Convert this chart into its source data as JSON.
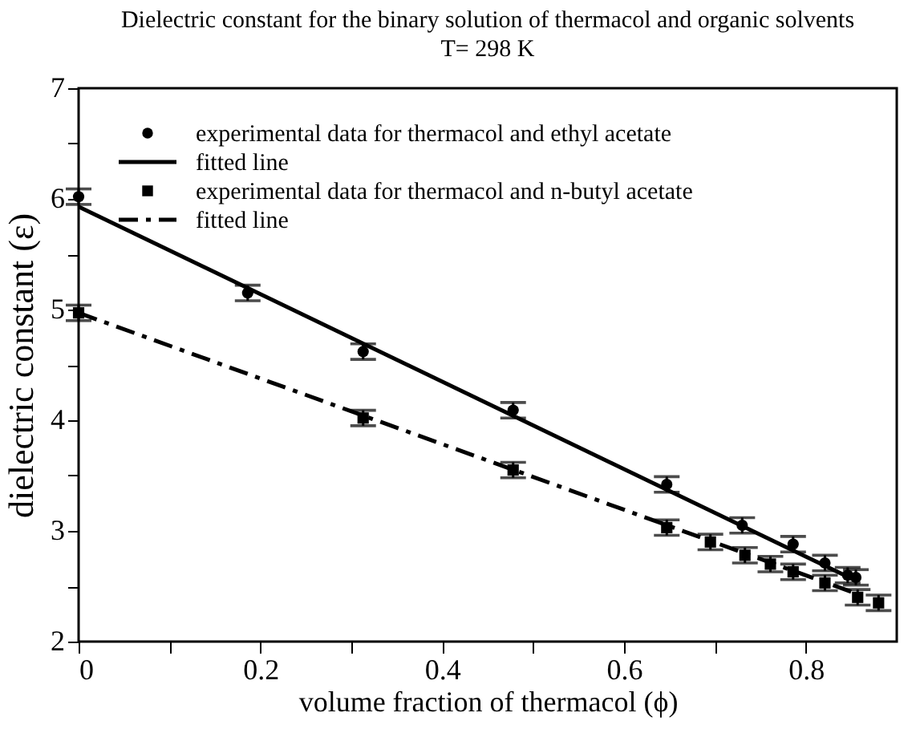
{
  "chart_data": {
    "type": "scatter",
    "title": "Dielectric constant for the binary solution of thermacol and organic solvents",
    "subtitle": "T= 298 K",
    "xlabel": "volume fraction of thermacol  (ϕ)",
    "ylabel": "dielectric constant (ε)",
    "xlim": [
      0,
      0.9
    ],
    "ylim": [
      2,
      7
    ],
    "xticks": [
      0,
      {
        "value": 0.1,
        "label": null
      },
      0.2,
      {
        "value": 0.3,
        "label": null
      },
      0.4,
      {
        "value": 0.5,
        "label": null
      },
      0.6,
      {
        "value": 0.7,
        "label": null
      },
      0.8
    ],
    "yticks": [
      2,
      {
        "value": 2.5,
        "label": null
      },
      3,
      {
        "value": 3.5,
        "label": null
      },
      4,
      {
        "value": 4.5,
        "label": null
      },
      5,
      {
        "value": 5.5,
        "label": null
      },
      6,
      {
        "value": 6.5,
        "label": null
      },
      7
    ],
    "grid": false,
    "legend": "top left",
    "series": [
      {
        "name": "experimental data for thermacol and ethyl acetate",
        "marker": "circle",
        "color": "#000000",
        "x": [
          0,
          0.186,
          0.313,
          0.478,
          0.647,
          0.73,
          0.786,
          0.821,
          0.846,
          0.855
        ],
        "values": [
          6.02,
          5.15,
          4.62,
          4.09,
          3.42,
          3.05,
          2.88,
          2.71,
          2.6,
          2.58
        ],
        "errors": [
          0.07,
          0.07,
          0.07,
          0.07,
          0.07,
          0.07,
          0.07,
          0.07,
          0.07,
          0.07
        ]
      },
      {
        "name": "fitted line",
        "type": "line",
        "line_style": "solid",
        "color": "#000000",
        "x": [
          0,
          0.855
        ],
        "values": [
          5.93,
          2.55
        ]
      },
      {
        "name": "experimental data for thermacol and n-butyl acetate",
        "marker": "square",
        "color": "#000000",
        "x": [
          0,
          0.313,
          0.478,
          0.647,
          0.695,
          0.733,
          0.761,
          0.786,
          0.821,
          0.857,
          0.88
        ],
        "values": [
          4.97,
          4.02,
          3.55,
          3.03,
          2.9,
          2.78,
          2.7,
          2.63,
          2.53,
          2.4,
          2.35
        ],
        "errors": [
          0.07,
          0.07,
          0.07,
          0.07,
          0.07,
          0.07,
          0.07,
          0.07,
          0.07,
          0.07,
          0.07
        ]
      },
      {
        "name": "fitted line",
        "type": "line",
        "line_style": "dashed",
        "color": "#000000",
        "x": [
          0,
          0.85
        ],
        "values": [
          4.97,
          2.45
        ]
      }
    ]
  }
}
